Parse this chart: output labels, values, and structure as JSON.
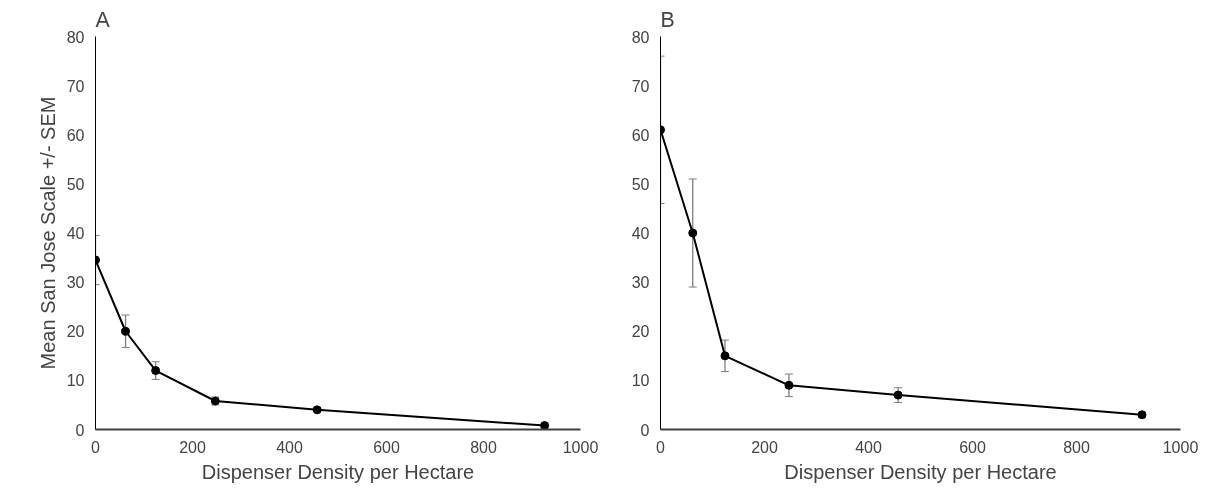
{
  "chart_data": [
    {
      "type": "line",
      "title": "A",
      "xlabel": "Dispenser Density per Hectare",
      "ylabel": "Mean San Jose Scale +/- SEM",
      "x": [
        0,
        62,
        124,
        247,
        457,
        926
      ],
      "series": [
        {
          "color": "#000000",
          "values": [
            34.5,
            20,
            12,
            5.8,
            4,
            0.8
          ],
          "errors": [
            5,
            3.3,
            1.8,
            0.8,
            0.4,
            0.3
          ]
        }
      ],
      "xlim": [
        0,
        1000
      ],
      "xticks": [
        0,
        200,
        400,
        600,
        800,
        1000
      ],
      "ylim": [
        0,
        80
      ],
      "yticks": [
        0,
        10,
        20,
        30,
        40,
        50,
        60,
        70,
        80
      ],
      "grid": false,
      "marker": "circle",
      "line_style": "solid"
    },
    {
      "type": "line",
      "title": "B",
      "xlabel": "Dispenser Density per Hectare",
      "x": [
        0,
        62,
        124,
        247,
        457,
        926
      ],
      "series": [
        {
          "color": "#000000",
          "values": [
            61,
            40,
            15,
            9,
            7,
            3
          ],
          "errors": [
            15,
            11,
            3.2,
            2.3,
            1.5,
            0.5
          ]
        }
      ],
      "xlim": [
        0,
        1000
      ],
      "xticks": [
        0,
        200,
        400,
        600,
        800,
        1000
      ],
      "ylim": [
        0,
        80
      ],
      "yticks": [
        0,
        10,
        20,
        30,
        40,
        50,
        60,
        70,
        80
      ],
      "grid": false,
      "marker": "circle",
      "line_style": "solid"
    }
  ]
}
